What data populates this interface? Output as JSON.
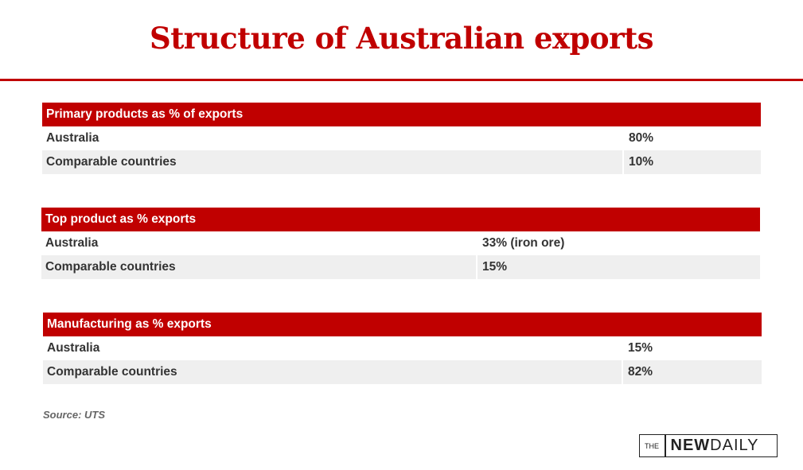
{
  "title": "Structure of Australian exports",
  "tables": [
    {
      "header": "Primary products as % of exports",
      "rows": [
        [
          "Australia",
          "80%"
        ],
        [
          "Comparable countries",
          "10%"
        ]
      ]
    },
    {
      "header": "Top product as % exports",
      "rows": [
        [
          "Australia",
          "33% (iron ore)"
        ],
        [
          "Comparable countries",
          "15%"
        ]
      ]
    },
    {
      "header": "Manufacturing as % exports",
      "rows": [
        [
          "Australia",
          "15%"
        ],
        [
          "Comparable countries",
          "82%"
        ]
      ]
    }
  ],
  "source": "Source: UTS",
  "logo": {
    "prefix": "THE",
    "bold": "NEW",
    "light": "DAILY"
  }
}
